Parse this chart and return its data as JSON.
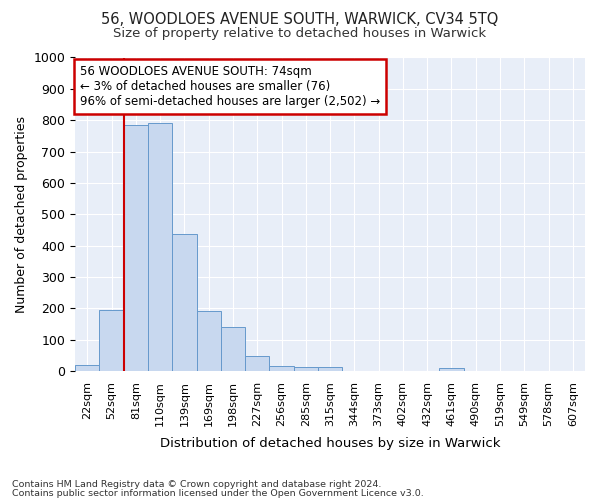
{
  "title_line1": "56, WOODLOES AVENUE SOUTH, WARWICK, CV34 5TQ",
  "title_line2": "Size of property relative to detached houses in Warwick",
  "xlabel": "Distribution of detached houses by size in Warwick",
  "ylabel": "Number of detached properties",
  "categories": [
    "22sqm",
    "52sqm",
    "81sqm",
    "110sqm",
    "139sqm",
    "169sqm",
    "198sqm",
    "227sqm",
    "256sqm",
    "285sqm",
    "315sqm",
    "344sqm",
    "373sqm",
    "402sqm",
    "432sqm",
    "461sqm",
    "490sqm",
    "519sqm",
    "549sqm",
    "578sqm",
    "607sqm"
  ],
  "values": [
    18,
    195,
    785,
    790,
    438,
    192,
    142,
    49,
    17,
    14,
    13,
    0,
    0,
    0,
    0,
    11,
    0,
    0,
    0,
    0,
    0
  ],
  "bar_color": "#c8d8ef",
  "bar_edgecolor": "#6699cc",
  "vline_color": "#cc0000",
  "annotation_text": "56 WOODLOES AVENUE SOUTH: 74sqm\n← 3% of detached houses are smaller (76)\n96% of semi-detached houses are larger (2,502) →",
  "annotation_box_facecolor": "white",
  "annotation_box_edgecolor": "#cc0000",
  "ylim": [
    0,
    1000
  ],
  "yticks": [
    0,
    100,
    200,
    300,
    400,
    500,
    600,
    700,
    800,
    900,
    1000
  ],
  "footnote1": "Contains HM Land Registry data © Crown copyright and database right 2024.",
  "footnote2": "Contains public sector information licensed under the Open Government Licence v3.0.",
  "fig_facecolor": "#ffffff",
  "plot_facecolor": "#e8eef8",
  "grid_color": "#ffffff",
  "vline_xindex": 2
}
